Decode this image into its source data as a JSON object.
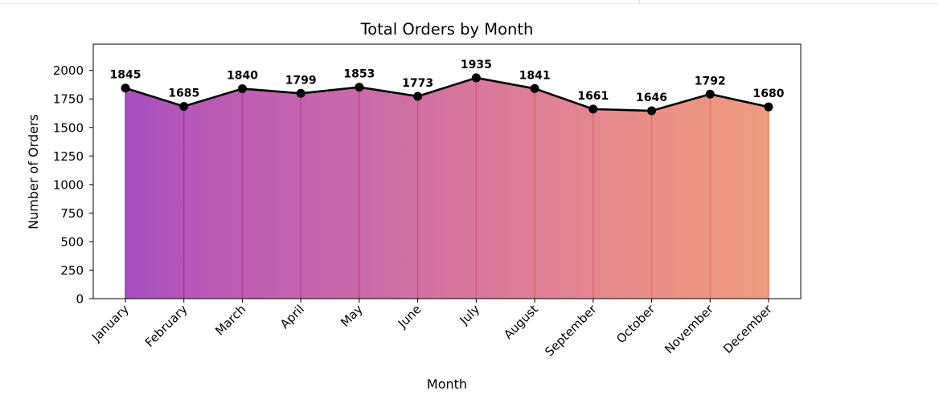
{
  "chart_data": {
    "type": "area",
    "title": "Total Orders by Month",
    "xlabel": "Month",
    "ylabel": "Number of Orders",
    "categories": [
      "January",
      "February",
      "March",
      "April",
      "May",
      "June",
      "July",
      "August",
      "September",
      "October",
      "November",
      "December"
    ],
    "values": [
      1845,
      1685,
      1840,
      1799,
      1853,
      1773,
      1935,
      1841,
      1661,
      1646,
      1792,
      1680
    ],
    "ylim": [
      0,
      2230
    ],
    "yticks": [
      0,
      250,
      500,
      750,
      1000,
      1250,
      1500,
      1750,
      2000
    ],
    "grid": false,
    "legend": false,
    "line_color": "#000000",
    "fill_colormap": "plasma-like gradient",
    "fill_colors": [
      "#a64ec0",
      "#b457b8",
      "#be5db2",
      "#c463ad",
      "#ca69a8",
      "#d170a2",
      "#d8779c",
      "#de7f96",
      "#e4878f",
      "#e98f88",
      "#ec9583",
      "#ef9c7f"
    ],
    "separator_colors": [
      "#9b3cb4",
      "#a43aa8",
      "#b1409c",
      "#b8449a",
      "#c14a93",
      "#c84f88",
      "#d35a7c",
      "#d96270",
      "#e06a6e",
      "#e3706c",
      "#e77a69",
      "#ea8166"
    ]
  }
}
